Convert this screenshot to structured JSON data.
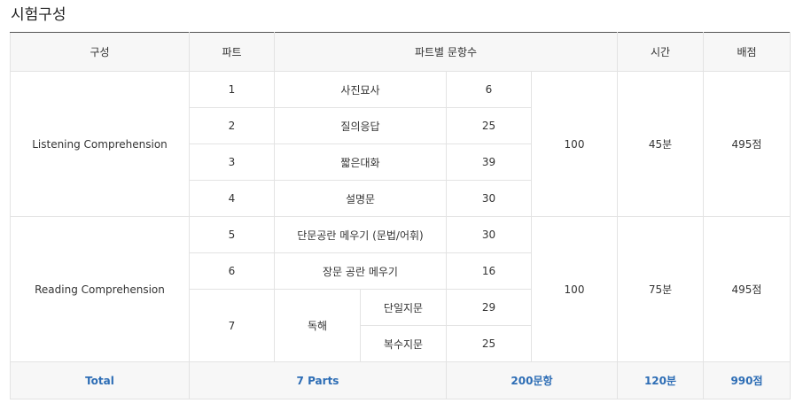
{
  "title": "시험구성",
  "headers": {
    "section": "구성",
    "part": "파트",
    "questions": "파트별 문항수",
    "time": "시간",
    "score": "배점"
  },
  "listening": {
    "name": "Listening Comprehension",
    "total": "100",
    "time": "45분",
    "score": "495점",
    "parts": [
      {
        "part": "1",
        "label": "사진묘사",
        "count": "6"
      },
      {
        "part": "2",
        "label": "질의응답",
        "count": "25"
      },
      {
        "part": "3",
        "label": "짧은대화",
        "count": "39"
      },
      {
        "part": "4",
        "label": "설명문",
        "count": "30"
      }
    ]
  },
  "reading": {
    "name": "Reading Comprehension",
    "total": "100",
    "time": "75분",
    "score": "495점",
    "parts": [
      {
        "part": "5",
        "label": "단문공란 메우기 (문법/어휘)",
        "count": "30"
      },
      {
        "part": "6",
        "label": "장문 공란 메우기",
        "count": "16"
      }
    ],
    "part7": {
      "part": "7",
      "label": "독해",
      "subs": [
        {
          "label": "단일지문",
          "count": "29"
        },
        {
          "label": "복수지문",
          "count": "25"
        }
      ]
    }
  },
  "total": {
    "label": "Total",
    "parts": "7 Parts",
    "questions": "200문항",
    "time": "120분",
    "score": "990점"
  }
}
